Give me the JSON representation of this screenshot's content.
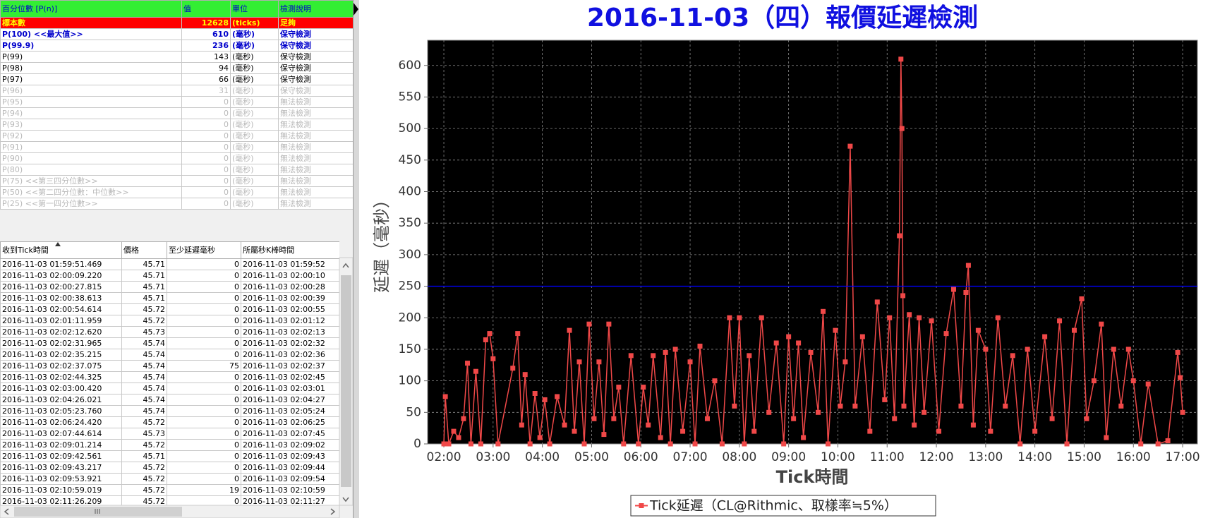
{
  "percentile_table": {
    "header": [
      "百分位數 [P(n)]",
      "值",
      "單位",
      "檢測說明"
    ],
    "rows": [
      [
        "標本數",
        "12628",
        "(ticks)",
        "足夠"
      ],
      [
        "P(100)  <<最大值>>",
        "610",
        "(毫秒)",
        "保守檢測"
      ],
      [
        "P(99.9)",
        "236",
        "(毫秒)",
        "保守檢測"
      ],
      [
        "P(99)",
        "143",
        "(毫秒)",
        "保守檢測"
      ],
      [
        "P(98)",
        "94",
        "(毫秒)",
        "保守檢測"
      ],
      [
        "P(97)",
        "66",
        "(毫秒)",
        "保守檢測"
      ],
      [
        "P(96)",
        "31",
        "(毫秒)",
        "保守檢測"
      ],
      [
        "P(95)",
        "0",
        "(毫秒)",
        "無法檢測"
      ],
      [
        "P(94)",
        "0",
        "(毫秒)",
        "無法檢測"
      ],
      [
        "P(93)",
        "0",
        "(毫秒)",
        "無法檢測"
      ],
      [
        "P(92)",
        "0",
        "(毫秒)",
        "無法檢測"
      ],
      [
        "P(91)",
        "0",
        "(毫秒)",
        "無法檢測"
      ],
      [
        "P(90)",
        "0",
        "(毫秒)",
        "無法檢測"
      ],
      [
        "P(80)",
        "0",
        "(毫秒)",
        "無法檢測"
      ],
      [
        "P(75)  <<第三四分位數>>",
        "0",
        "(毫秒)",
        "無法檢測"
      ],
      [
        "P(50)  <<第二四分位數：中位數>>",
        "0",
        "(毫秒)",
        "無法檢測"
      ],
      [
        "P(25)  <<第一四分位數>>",
        "0",
        "(毫秒)",
        "無法檢測"
      ]
    ]
  },
  "tick_table": {
    "header": [
      "收到Tick時間",
      "價格",
      "至少延遲毫秒",
      "所屬秒K棒時間"
    ],
    "rows": [
      [
        "2016-11-03 01:59:51.469",
        "45.71",
        "0",
        "2016-11-03 01:59:52"
      ],
      [
        "2016-11-03 02:00:09.220",
        "45.71",
        "0",
        "2016-11-03 02:00:10"
      ],
      [
        "2016-11-03 02:00:27.815",
        "45.71",
        "0",
        "2016-11-03 02:00:28"
      ],
      [
        "2016-11-03 02:00:38.613",
        "45.71",
        "0",
        "2016-11-03 02:00:39"
      ],
      [
        "2016-11-03 02:00:54.614",
        "45.72",
        "0",
        "2016-11-03 02:00:55"
      ],
      [
        "2016-11-03 02:01:11.959",
        "45.72",
        "0",
        "2016-11-03 02:01:12"
      ],
      [
        "2016-11-03 02:02:12.620",
        "45.73",
        "0",
        "2016-11-03 02:02:13"
      ],
      [
        "2016-11-03 02:02:31.965",
        "45.74",
        "0",
        "2016-11-03 02:02:32"
      ],
      [
        "2016-11-03 02:02:35.215",
        "45.74",
        "0",
        "2016-11-03 02:02:36"
      ],
      [
        "2016-11-03 02:02:37.075",
        "45.74",
        "75",
        "2016-11-03 02:02:37"
      ],
      [
        "2016-11-03 02:02:44.325",
        "45.74",
        "0",
        "2016-11-03 02:02:45"
      ],
      [
        "2016-11-03 02:03:00.420",
        "45.74",
        "0",
        "2016-11-03 02:03:01"
      ],
      [
        "2016-11-03 02:04:26.021",
        "45.74",
        "0",
        "2016-11-03 02:04:27"
      ],
      [
        "2016-11-03 02:05:23.760",
        "45.74",
        "0",
        "2016-11-03 02:05:24"
      ],
      [
        "2016-11-03 02:06:24.420",
        "45.72",
        "0",
        "2016-11-03 02:06:25"
      ],
      [
        "2016-11-03 02:07:44.614",
        "45.73",
        "0",
        "2016-11-03 02:07:45"
      ],
      [
        "2016-11-03 02:09:01.214",
        "45.72",
        "0",
        "2016-11-03 02:09:02"
      ],
      [
        "2016-11-03 02:09:42.561",
        "45.71",
        "0",
        "2016-11-03 02:09:43"
      ],
      [
        "2016-11-03 02:09:43.217",
        "45.72",
        "0",
        "2016-11-03 02:09:44"
      ],
      [
        "2016-11-03 02:09:53.921",
        "45.72",
        "0",
        "2016-11-03 02:09:54"
      ],
      [
        "2016-11-03 02:10:59.019",
        "45.72",
        "19",
        "2016-11-03 02:10:59"
      ],
      [
        "2016-11-03 02:11:26.209",
        "45.72",
        "0",
        "2016-11-03 02:11:27"
      ]
    ]
  },
  "chart_data": {
    "type": "line",
    "title": "2016-11-03（四）報價延遲檢測",
    "x_label": "Tick時間",
    "y_label": "延遲（毫秒）",
    "x": [
      2.0,
      2.03,
      2.1,
      2.2,
      2.3,
      2.4,
      2.48,
      2.55,
      2.65,
      2.75,
      2.85,
      2.93,
      3.0,
      3.1,
      3.4,
      3.5,
      3.58,
      3.65,
      3.75,
      3.85,
      3.95,
      4.05,
      4.15,
      4.3,
      4.45,
      4.55,
      4.65,
      4.75,
      4.85,
      4.95,
      5.05,
      5.15,
      5.25,
      5.35,
      5.45,
      5.55,
      5.65,
      5.8,
      5.95,
      6.05,
      6.15,
      6.25,
      6.4,
      6.5,
      6.6,
      6.7,
      6.85,
      7.0,
      7.1,
      7.2,
      7.35,
      7.5,
      7.65,
      7.8,
      7.9,
      8.0,
      8.1,
      8.2,
      8.3,
      8.45,
      8.6,
      8.75,
      8.9,
      9.0,
      9.1,
      9.2,
      9.3,
      9.45,
      9.6,
      9.7,
      9.8,
      9.95,
      10.05,
      10.15,
      10.25,
      10.35,
      10.5,
      10.65,
      10.8,
      10.95,
      11.05,
      11.15,
      11.25,
      11.28,
      11.3,
      11.32,
      11.34,
      11.45,
      11.55,
      11.65,
      11.75,
      11.9,
      12.05,
      12.2,
      12.35,
      12.5,
      12.6,
      12.65,
      12.75,
      12.85,
      13.0,
      13.1,
      13.25,
      13.4,
      13.55,
      13.7,
      13.85,
      14.0,
      14.2,
      14.35,
      14.5,
      14.65,
      14.8,
      14.95,
      15.05,
      15.2,
      15.35,
      15.45,
      15.6,
      15.75,
      15.9,
      16.0,
      16.15,
      16.3,
      16.5,
      16.7,
      16.9,
      16.95,
      17.0
    ],
    "series": [
      {
        "name": "Tick延遲（CL@Rithmic、取樣率≒5%）",
        "color": "#f04848",
        "values": [
          0,
          75,
          0,
          20,
          10,
          40,
          128,
          0,
          115,
          0,
          165,
          175,
          135,
          0,
          120,
          175,
          30,
          110,
          0,
          80,
          10,
          70,
          0,
          75,
          30,
          180,
          20,
          130,
          0,
          190,
          40,
          130,
          15,
          190,
          40,
          90,
          0,
          140,
          0,
          90,
          30,
          140,
          10,
          145,
          0,
          150,
          20,
          130,
          0,
          155,
          40,
          100,
          0,
          200,
          60,
          200,
          0,
          140,
          20,
          200,
          50,
          160,
          0,
          170,
          40,
          160,
          10,
          145,
          50,
          210,
          0,
          180,
          60,
          130,
          472,
          60,
          170,
          20,
          225,
          70,
          200,
          40,
          330,
          610,
          500,
          235,
          60,
          205,
          30,
          200,
          50,
          195,
          20,
          175,
          245,
          60,
          240,
          283,
          30,
          180,
          150,
          20,
          200,
          60,
          140,
          0,
          150,
          20,
          170,
          40,
          195,
          0,
          180,
          230,
          40,
          100,
          190,
          10,
          150,
          60,
          150,
          100,
          0,
          95,
          0,
          5,
          145,
          105,
          50
        ]
      }
    ],
    "ref_line": 250,
    "ref_color": "#0000ff",
    "xlim": [
      1.67,
      17.3
    ],
    "xticks": [
      {
        "value": 2,
        "label": "02:00"
      },
      {
        "value": 3,
        "label": "03:00"
      },
      {
        "value": 4,
        "label": "04:00"
      },
      {
        "value": 5,
        "label": "05:00"
      },
      {
        "value": 6,
        "label": "06:00"
      },
      {
        "value": 7,
        "label": "07:00"
      },
      {
        "value": 8,
        "label": "08:00"
      },
      {
        "value": 9,
        "label": "09:00"
      },
      {
        "value": 10,
        "label": "10:00"
      },
      {
        "value": 11,
        "label": "11:00"
      },
      {
        "value": 12,
        "label": "12:00"
      },
      {
        "value": 13,
        "label": "13:00"
      },
      {
        "value": 14,
        "label": "14:00"
      },
      {
        "value": 15,
        "label": "15:00"
      },
      {
        "value": 16,
        "label": "16:00"
      },
      {
        "value": 17,
        "label": "17:00"
      }
    ],
    "ylim": [
      0,
      640
    ],
    "yticks": [
      0,
      50,
      100,
      150,
      200,
      250,
      300,
      350,
      400,
      450,
      500,
      550,
      600
    ],
    "grid": true,
    "legend": "bottom"
  }
}
